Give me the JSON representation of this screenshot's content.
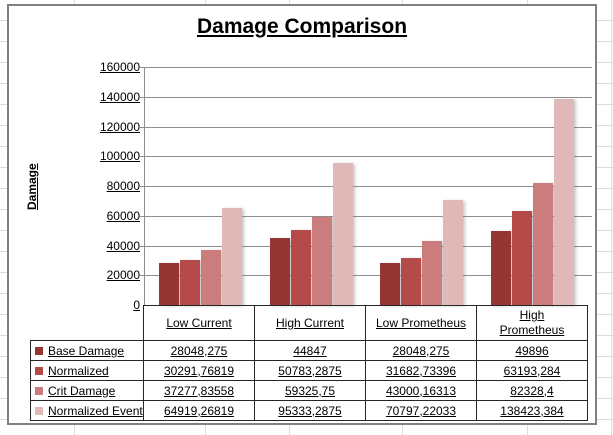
{
  "chart_data": {
    "type": "bar",
    "title": "Damage Comparison",
    "ylabel": "Damage",
    "ylim": [
      0,
      160000
    ],
    "ytick_step": 20000,
    "ytick_labels": [
      "0",
      "20000",
      "40000",
      "60000",
      "80000",
      "100000",
      "120000",
      "140000",
      "160000"
    ],
    "categories": [
      "Low Current",
      "High Current",
      "Low Prometheus",
      "High\nPrometheus"
    ],
    "series": [
      {
        "name": "Base Damage",
        "color": "#943634",
        "values": [
          28048.275,
          44847,
          28048.275,
          49896
        ],
        "display": [
          "28048,275",
          "44847",
          "28048,275",
          "49896"
        ]
      },
      {
        "name": "Normalized",
        "color": "#B44B48",
        "values": [
          30291.76819,
          50783.2875,
          31682.73396,
          63193.284
        ],
        "display": [
          "30291,76819",
          "50783,2875",
          "31682,73396",
          "63193,284"
        ]
      },
      {
        "name": "Crit Damage",
        "color": "#CA7D7C",
        "values": [
          37277.83558,
          59325.75,
          43000.16313,
          82328.4
        ],
        "display": [
          "37277,83558",
          "59325,75",
          "43000,16313",
          "82328,4"
        ]
      },
      {
        "name": "Normalized Event",
        "color": "#DFB8B7",
        "values": [
          64919.26819,
          95333.2875,
          70797.22033,
          138423.384
        ],
        "display": [
          "64919,26819",
          "95333,2875",
          "70797,22033",
          "138423,384"
        ]
      }
    ],
    "grid": true,
    "legend_position": "data-table-left"
  },
  "colors": {
    "gridline": "#8E8E8E",
    "table_border": "#262626",
    "chart_border": "#808080",
    "sheet_gridline": "#DCDCDC"
  },
  "sheet": {
    "vline_positions": [
      74,
      205,
      289,
      402,
      527,
      611
    ]
  }
}
